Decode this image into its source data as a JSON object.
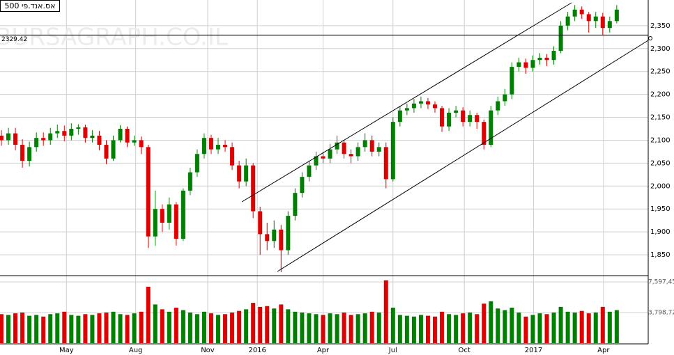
{
  "chart_data": {
    "type": "candlestick",
    "title": "אס.אנד.פי 500",
    "watermark": "BURSAGRAPH.CO.IL",
    "reference_line": {
      "value": 2329.42,
      "label": "2329.42"
    },
    "up_color": "#008000",
    "down_color": "#e00000",
    "grid": true,
    "xlim": [
      -0.2,
      92.5
    ],
    "xticks": [
      {
        "value": 9.3,
        "label": "May"
      },
      {
        "value": 19.2,
        "label": "Aug"
      },
      {
        "value": 29.5,
        "label": "Nov"
      },
      {
        "value": 36.6,
        "label": "2016"
      },
      {
        "value": 46,
        "label": "Apr"
      },
      {
        "value": 56,
        "label": "Jul"
      },
      {
        "value": 66.2,
        "label": "Oct"
      },
      {
        "value": 76.1,
        "label": "2017"
      },
      {
        "value": 86.1,
        "label": "Apr"
      }
    ],
    "ylim": [
      1806,
      2406
    ],
    "yticks": [
      {
        "value": 1850,
        "label": "1,850"
      },
      {
        "value": 1900,
        "label": "1,900"
      },
      {
        "value": 1950,
        "label": "1,950"
      },
      {
        "value": 2000,
        "label": "2,000"
      },
      {
        "value": 2050,
        "label": "2,050"
      },
      {
        "value": 2100,
        "label": "2,100"
      },
      {
        "value": 2150,
        "label": "2,150"
      },
      {
        "value": 2200,
        "label": "2,200"
      },
      {
        "value": 2250,
        "label": "2,250"
      },
      {
        "value": 2300,
        "label": "2,300"
      },
      {
        "value": 2350,
        "label": "2,350"
      }
    ],
    "open": [
      2110,
      2100,
      2115,
      2090,
      2055,
      2085,
      2105,
      2100,
      2115,
      2120,
      2110,
      2125,
      2128,
      2105,
      2110,
      2090,
      2060,
      2100,
      2125,
      2095,
      2100,
      2085,
      1890,
      1950,
      1920,
      1960,
      1885,
      1990,
      2030,
      2070,
      2105,
      2080,
      2090,
      2085,
      2045,
      2010,
      2045,
      1945,
      1895,
      1880,
      1905,
      1860,
      1935,
      1985,
      2020,
      2045,
      2065,
      2060,
      2080,
      2095,
      2070,
      2065,
      2085,
      2100,
      2075,
      2085,
      2015,
      2140,
      2165,
      2170,
      2180,
      2185,
      2178,
      2170,
      2130,
      2160,
      2165,
      2140,
      2155,
      2140,
      2090,
      2165,
      2185,
      2200,
      2260,
      2270,
      2258,
      2275,
      2280,
      2275,
      2295,
      2350,
      2370,
      2385,
      2375,
      2360,
      2370,
      2345,
      2360
    ],
    "high": [
      2122,
      2127,
      2127,
      2102,
      2097,
      2117,
      2117,
      2127,
      2134,
      2132,
      2137,
      2135,
      2134,
      2122,
      2120,
      2100,
      2110,
      2133,
      2130,
      2110,
      2108,
      2090,
      1990,
      1960,
      1975,
      1965,
      1995,
      2040,
      2080,
      2115,
      2112,
      2105,
      2100,
      2095,
      2055,
      2060,
      2050,
      1955,
      1920,
      1925,
      1915,
      1945,
      1995,
      2030,
      2055,
      2075,
      2075,
      2092,
      2110,
      2100,
      2080,
      2095,
      2115,
      2110,
      2095,
      2095,
      2150,
      2175,
      2180,
      2190,
      2195,
      2192,
      2185,
      2175,
      2170,
      2175,
      2172,
      2165,
      2160,
      2145,
      2175,
      2195,
      2212,
      2270,
      2280,
      2278,
      2285,
      2290,
      2288,
      2305,
      2360,
      2380,
      2395,
      2392,
      2380,
      2380,
      2378,
      2370,
      2395
    ],
    "low": [
      2088,
      2090,
      2078,
      2040,
      2043,
      2075,
      2088,
      2090,
      2105,
      2098,
      2100,
      2112,
      2095,
      2095,
      2078,
      2048,
      2055,
      2095,
      2085,
      2088,
      2070,
      1865,
      1870,
      1900,
      1905,
      1870,
      1880,
      1980,
      2020,
      2060,
      2070,
      2070,
      2075,
      2035,
      1995,
      2000,
      1930,
      1850,
      1860,
      1865,
      1812,
      1850,
      1925,
      1975,
      2010,
      2035,
      2050,
      2050,
      2070,
      2060,
      2050,
      2055,
      2075,
      2065,
      2065,
      1995,
      2010,
      2130,
      2155,
      2160,
      2170,
      2168,
      2160,
      2118,
      2120,
      2150,
      2130,
      2130,
      2125,
      2080,
      2085,
      2155,
      2175,
      2190,
      2250,
      2245,
      2250,
      2265,
      2262,
      2265,
      2290,
      2340,
      2360,
      2365,
      2335,
      2345,
      2330,
      2335,
      2355
    ],
    "close": [
      2100,
      2115,
      2090,
      2055,
      2085,
      2105,
      2100,
      2115,
      2120,
      2110,
      2125,
      2128,
      2105,
      2110,
      2090,
      2060,
      2100,
      2125,
      2095,
      2100,
      2085,
      1890,
      1950,
      1920,
      1960,
      1885,
      1990,
      2030,
      2070,
      2105,
      2080,
      2090,
      2085,
      2045,
      2010,
      2045,
      1945,
      1895,
      1880,
      1905,
      1860,
      1935,
      1985,
      2020,
      2045,
      2065,
      2060,
      2080,
      2095,
      2070,
      2065,
      2085,
      2100,
      2075,
      2085,
      2015,
      2140,
      2165,
      2170,
      2180,
      2185,
      2178,
      2170,
      2130,
      2160,
      2165,
      2140,
      2155,
      2140,
      2090,
      2165,
      2185,
      2200,
      2260,
      2270,
      2258,
      2275,
      2280,
      2275,
      2295,
      2350,
      2370,
      2385,
      2375,
      2360,
      2370,
      2345,
      2360,
      2385
    ],
    "volume_ylim": [
      0,
      8288000
    ],
    "volume_yticks": [
      {
        "value": 3798720,
        "label": "3,798,72"
      },
      {
        "value": 7597450,
        "label": "7,597,45"
      }
    ],
    "volume": [
      3600000,
      3500000,
      3700000,
      3800000,
      3400000,
      3500000,
      3300000,
      3600000,
      3700000,
      3900000,
      3500000,
      3400000,
      3600000,
      3500000,
      3700000,
      3800000,
      3900000,
      3600000,
      3500000,
      3700000,
      3900000,
      7000000,
      4800000,
      4200000,
      3900000,
      4400000,
      4100000,
      3800000,
      3600000,
      3900000,
      3700000,
      3500000,
      3600000,
      3800000,
      4000000,
      4200000,
      5000000,
      4500000,
      4600000,
      4300000,
      4800000,
      4200000,
      3900000,
      3800000,
      3700000,
      3600000,
      3500000,
      3700000,
      3600000,
      3800000,
      3500000,
      3600000,
      3700000,
      3900000,
      3800000,
      7800000,
      4400000,
      3500000,
      3400000,
      3300000,
      3500000,
      3400000,
      3300000,
      3900000,
      3600000,
      3500000,
      3700000,
      3800000,
      3600000,
      4900000,
      5200000,
      4300000,
      4100000,
      4400000,
      3800000,
      3300000,
      3500000,
      3700000,
      3600000,
      3800000,
      4500000,
      3900000,
      3800000,
      4000000,
      3700000,
      3800000,
      4500000,
      3900000,
      4100000
    ]
  }
}
